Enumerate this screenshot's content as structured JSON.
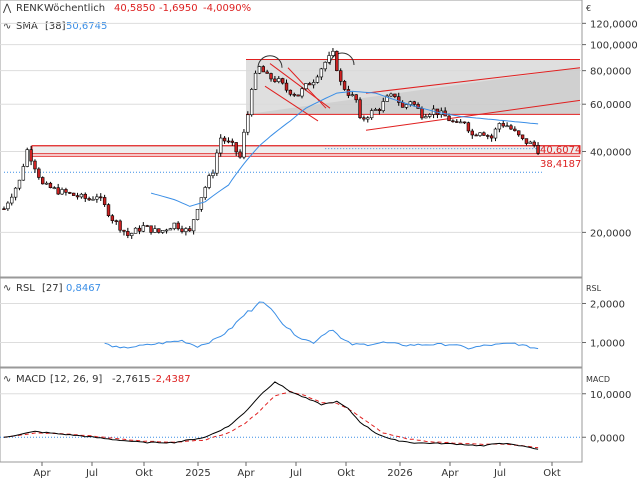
{
  "colors": {
    "up": "#ffffff",
    "down": "#cc2222",
    "wick": "#000000",
    "sma": "#3a8ee6",
    "rsl": "#3a8ee6",
    "macd": "#000000",
    "signal": "#e02020",
    "trend": "#e02020",
    "channel_fill": "#d9d9d9",
    "grid": "#dddddd",
    "neg": "#dd2222"
  },
  "header": {
    "symbol": "RENK",
    "period": "Wöchentlich",
    "last": "40,5850",
    "change": "-1,6950",
    "change_pct": "-4,0090%",
    "sma_label": "SMA",
    "sma_period": "[38]",
    "sma_value": "50,6745"
  },
  "rsl_header": {
    "name": "RSL",
    "period": "[27]",
    "value": "0,8467",
    "axis_title": "RSL"
  },
  "macd_header": {
    "name": "MACD",
    "period": "[12, 26, 9]",
    "value": "-2,7615",
    "signal_value": "-2,4387",
    "axis_title": "MACD"
  },
  "currency": "€",
  "chart_data": [
    {
      "type": "candlestick",
      "scale": "log",
      "ylim": [
        14,
        130
      ],
      "yticks": [
        "20,0000",
        "40,0000",
        "60,0000",
        "80,0000",
        "100,0000",
        "120,0000"
      ],
      "ytick_values": [
        20,
        40,
        60,
        80,
        100,
        120
      ],
      "level_labels": [
        "40,6074",
        "38,4187"
      ],
      "level_values": [
        40.6074,
        38.4187
      ],
      "xticks": [
        "Apr",
        "Jul",
        "Okt",
        "2025",
        "Apr",
        "Jul",
        "Okt",
        "2026",
        "Apr",
        "Jul",
        "Okt"
      ],
      "close_anchors": [
        [
          0,
          24.5
        ],
        [
          4,
          31
        ],
        [
          6,
          40.5
        ],
        [
          10,
          30
        ],
        [
          14,
          28.5
        ],
        [
          18,
          27.5
        ],
        [
          22,
          26.5
        ],
        [
          24,
          27.5
        ],
        [
          28,
          22.5
        ],
        [
          32,
          19.5
        ],
        [
          36,
          21
        ],
        [
          40,
          20
        ],
        [
          44,
          21.5
        ],
        [
          48,
          20
        ],
        [
          50,
          25
        ],
        [
          54,
          34
        ],
        [
          56,
          45
        ],
        [
          59,
          42
        ],
        [
          61,
          38
        ],
        [
          63,
          55
        ],
        [
          64,
          70
        ],
        [
          66,
          82
        ],
        [
          68,
          76
        ],
        [
          71,
          73
        ],
        [
          73,
          68
        ],
        [
          76,
          65
        ],
        [
          78,
          70
        ],
        [
          80,
          74
        ],
        [
          83,
          86
        ],
        [
          85,
          92
        ],
        [
          87,
          72
        ],
        [
          89,
          66
        ],
        [
          91,
          62
        ],
        [
          92,
          52
        ],
        [
          95,
          56
        ],
        [
          97,
          58
        ],
        [
          99,
          63
        ],
        [
          101,
          65
        ],
        [
          103,
          58
        ],
        [
          105,
          62
        ],
        [
          108,
          55
        ],
        [
          111,
          57
        ],
        [
          114,
          54
        ],
        [
          117,
          50
        ],
        [
          119,
          52
        ],
        [
          121,
          46
        ],
        [
          123,
          48
        ],
        [
          126,
          45
        ],
        [
          128,
          51
        ],
        [
          130,
          50
        ],
        [
          132,
          47
        ],
        [
          134,
          44
        ],
        [
          137,
          42.2
        ],
        [
          138,
          40.585
        ]
      ],
      "sma_anchors": [
        [
          38,
          28
        ],
        [
          44,
          26.5
        ],
        [
          48,
          25
        ],
        [
          52,
          26
        ],
        [
          58,
          30
        ],
        [
          62,
          36
        ],
        [
          66,
          42
        ],
        [
          70,
          47
        ],
        [
          74,
          52
        ],
        [
          78,
          58
        ],
        [
          82,
          62
        ],
        [
          86,
          66
        ],
        [
          90,
          67
        ],
        [
          96,
          66
        ],
        [
          100,
          63
        ],
        [
          106,
          59
        ],
        [
          112,
          56
        ],
        [
          118,
          54
        ],
        [
          124,
          53
        ],
        [
          130,
          52
        ],
        [
          138,
          50.67
        ]
      ],
      "dotted_line": [
        [
          [
            0,
            33.5
          ],
          [
            139,
            33.5
          ]
        ],
        [
          [
            83,
            41.0
          ],
          [
            139,
            41.0
          ]
        ]
      ]
    },
    {
      "type": "line",
      "name": "RSL",
      "ylim": [
        0.45,
        2.55
      ],
      "yticks": [
        "1,0000",
        "2,0000"
      ],
      "ytick_values": [
        1,
        2
      ],
      "baseline": 1.0,
      "anchors": [
        [
          26,
          0.97
        ],
        [
          30,
          0.85
        ],
        [
          34,
          0.9
        ],
        [
          38,
          0.95
        ],
        [
          42,
          1.0
        ],
        [
          46,
          1.05
        ],
        [
          50,
          0.9
        ],
        [
          54,
          1.05
        ],
        [
          58,
          1.3
        ],
        [
          60,
          1.5
        ],
        [
          62,
          1.7
        ],
        [
          64,
          1.85
        ],
        [
          66,
          2.1
        ],
        [
          68,
          1.9
        ],
        [
          70,
          1.8
        ],
        [
          72,
          1.5
        ],
        [
          74,
          1.3
        ],
        [
          77,
          1.1
        ],
        [
          80,
          1.0
        ],
        [
          83,
          1.25
        ],
        [
          85,
          1.35
        ],
        [
          87,
          1.1
        ],
        [
          90,
          0.95
        ],
        [
          94,
          0.95
        ],
        [
          98,
          1.0
        ],
        [
          104,
          0.93
        ],
        [
          110,
          0.95
        ],
        [
          116,
          0.95
        ],
        [
          120,
          0.85
        ],
        [
          124,
          0.92
        ],
        [
          128,
          0.95
        ],
        [
          132,
          0.98
        ],
        [
          135,
          0.9
        ],
        [
          138,
          0.8467
        ]
      ]
    },
    {
      "type": "line",
      "name": "MACD",
      "ylim": [
        -5,
        15
      ],
      "yticks": [
        "0,0000",
        "10,0000"
      ],
      "ytick_values": [
        0,
        10
      ],
      "macd_anchors": [
        [
          0,
          0.0
        ],
        [
          8,
          1.3
        ],
        [
          14,
          0.8
        ],
        [
          20,
          0.3
        ],
        [
          28,
          -0.5
        ],
        [
          36,
          -1.2
        ],
        [
          44,
          -1.2
        ],
        [
          52,
          0.0
        ],
        [
          58,
          2.5
        ],
        [
          62,
          5.5
        ],
        [
          66,
          9.5
        ],
        [
          70,
          12.8
        ],
        [
          74,
          10.5
        ],
        [
          78,
          9.0
        ],
        [
          82,
          7.5
        ],
        [
          86,
          8.2
        ],
        [
          89,
          6.5
        ],
        [
          92,
          3.5
        ],
        [
          96,
          1.0
        ],
        [
          100,
          -0.5
        ],
        [
          106,
          -1.3
        ],
        [
          112,
          -1.4
        ],
        [
          118,
          -1.6
        ],
        [
          124,
          -2.0
        ],
        [
          128,
          -1.3
        ],
        [
          132,
          -1.8
        ],
        [
          136,
          -2.3
        ],
        [
          138,
          -2.76
        ]
      ],
      "signal_anchors": [
        [
          0,
          0.0
        ],
        [
          8,
          1.0
        ],
        [
          14,
          0.9
        ],
        [
          20,
          0.5
        ],
        [
          28,
          -0.2
        ],
        [
          36,
          -0.9
        ],
        [
          44,
          -1.2
        ],
        [
          52,
          -0.6
        ],
        [
          58,
          1.0
        ],
        [
          62,
          3.0
        ],
        [
          66,
          6.0
        ],
        [
          70,
          9.5
        ],
        [
          74,
          10.5
        ],
        [
          78,
          9.5
        ],
        [
          82,
          8.0
        ],
        [
          86,
          7.8
        ],
        [
          90,
          6.0
        ],
        [
          94,
          3.5
        ],
        [
          98,
          1.0
        ],
        [
          104,
          -0.3
        ],
        [
          110,
          -1.0
        ],
        [
          116,
          -1.3
        ],
        [
          122,
          -1.6
        ],
        [
          128,
          -1.6
        ],
        [
          134,
          -1.9
        ],
        [
          138,
          -2.44
        ]
      ]
    }
  ]
}
